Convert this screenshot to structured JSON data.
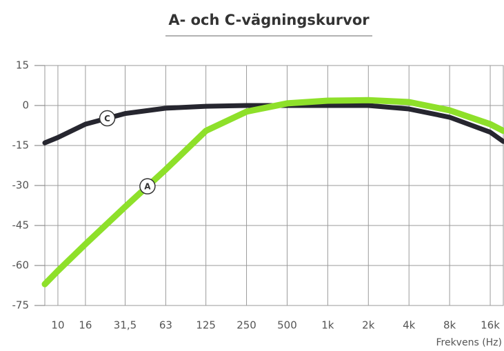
{
  "chart_data": {
    "type": "line",
    "title": "A- och C-vägningskurvor",
    "x_label": "Frekvens (Hz)",
    "x": [
      8,
      10,
      16,
      31.5,
      63,
      125,
      250,
      500,
      1000,
      2000,
      4000,
      8000,
      16000,
      20000
    ],
    "series": [
      {
        "name": "C",
        "color": "#26262f",
        "values": [
          -14,
          -12,
          -7,
          -3,
          -1,
          -0.3,
          0,
          0,
          0,
          0,
          -1.3,
          -4.4,
          -10,
          -13.5
        ]
      },
      {
        "name": "A",
        "color": "#8ee02a",
        "values": [
          -67,
          -62,
          -52,
          -38,
          -24,
          -9.5,
          -2.3,
          0.8,
          1.8,
          2,
          1.3,
          -1.8,
          -7,
          -9.5
        ]
      }
    ],
    "xscale": "log",
    "xlim": [
      8,
      20000
    ],
    "xticks": [
      10,
      16,
      {
        "value": 31.5,
        "label": "31,5"
      },
      63,
      125,
      250,
      500,
      {
        "value": 1000,
        "label": "1k"
      },
      {
        "value": 2000,
        "label": "2k"
      },
      {
        "value": 4000,
        "label": "4k"
      },
      {
        "value": 8000,
        "label": "8k"
      },
      {
        "value": 16000,
        "label": "16k"
      }
    ],
    "ylim": [
      -75,
      15
    ],
    "yticks": [
      -75,
      -60,
      -45,
      -30,
      -15,
      0,
      15
    ],
    "grid": true
  }
}
